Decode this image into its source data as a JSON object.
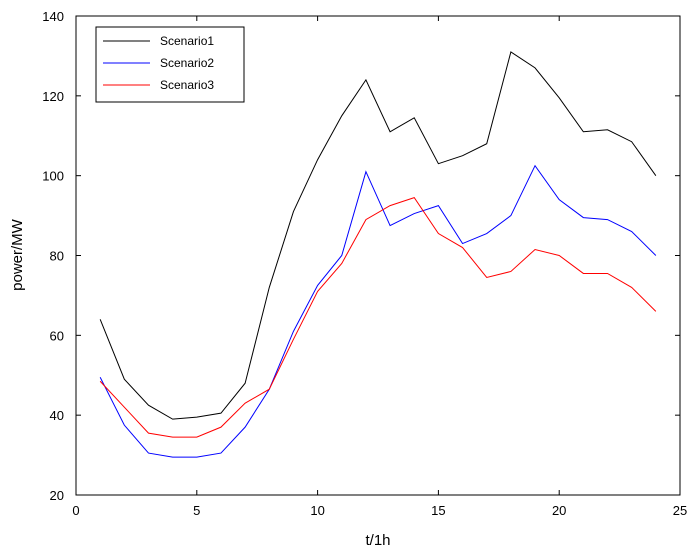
{
  "chart_data": {
    "type": "line",
    "xlabel": "t/1h",
    "ylabel": "power/MW",
    "xlim": [
      0,
      25
    ],
    "ylim": [
      20,
      140
    ],
    "xticks": [
      0,
      5,
      10,
      15,
      20,
      25
    ],
    "yticks": [
      20,
      40,
      60,
      80,
      100,
      120,
      140
    ],
    "grid": false,
    "legend_position": "top-left",
    "x": [
      1,
      2,
      3,
      4,
      5,
      6,
      7,
      8,
      9,
      10,
      11,
      12,
      13,
      14,
      15,
      16,
      17,
      18,
      19,
      20,
      21,
      22,
      23,
      24
    ],
    "series": [
      {
        "name": "Scenario1",
        "color": "#000000",
        "values": [
          64,
          49,
          42.5,
          39,
          39.5,
          40.5,
          48,
          72,
          91,
          104,
          115,
          124,
          111,
          114.5,
          103,
          105,
          108,
          131,
          127,
          119.5,
          111,
          111.5,
          108.5,
          100
        ]
      },
      {
        "name": "Scenario2",
        "color": "#0000ff",
        "values": [
          49.5,
          37.5,
          30.5,
          29.5,
          29.5,
          30.5,
          37,
          46.5,
          61,
          72.5,
          80,
          101,
          87.5,
          90.5,
          92.5,
          83,
          85.5,
          90,
          102.5,
          94,
          89.5,
          89,
          86,
          80
        ]
      },
      {
        "name": "Scenario3",
        "color": "#ff0000",
        "values": [
          48.5,
          42,
          35.5,
          34.5,
          34.5,
          37,
          43,
          46.5,
          59,
          71,
          78,
          89,
          92.5,
          94.5,
          85.5,
          82,
          74.5,
          76,
          81.5,
          80,
          75.5,
          75.5,
          72,
          66
        ]
      }
    ]
  }
}
